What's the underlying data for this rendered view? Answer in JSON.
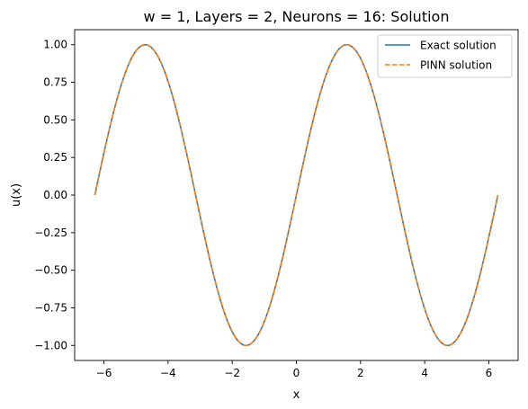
{
  "chart_data": {
    "type": "line",
    "title": "w = 1, Layers = 2, Neurons = 16: Solution",
    "xlabel": "x",
    "ylabel": "u(x)",
    "xlim": [
      -6.912,
      6.912
    ],
    "ylim": [
      -1.1,
      1.1
    ],
    "xticks": [
      -6,
      -4,
      -2,
      0,
      2,
      4,
      6
    ],
    "xtick_labels": [
      "−6",
      "−4",
      "−2",
      "0",
      "2",
      "4",
      "6"
    ],
    "yticks": [
      -1.0,
      -0.75,
      -0.5,
      -0.25,
      0.0,
      0.25,
      0.5,
      0.75,
      1.0
    ],
    "ytick_labels": [
      "−1.00",
      "−0.75",
      "−0.50",
      "−0.25",
      "0.00",
      "0.25",
      "0.50",
      "0.75",
      "1.00"
    ],
    "grid": false,
    "legend_position": "top-right",
    "function": "sin(x)",
    "x_domain": [
      -6.2832,
      6.2832
    ],
    "series": [
      {
        "name": "Exact solution",
        "color": "#1f77b4",
        "style": "solid",
        "x": [
          -6.2832,
          -5.4978,
          -4.7124,
          -3.927,
          -3.1416,
          -2.3562,
          -1.5708,
          -0.7854,
          0.0,
          0.7854,
          1.5708,
          2.3562,
          3.1416,
          3.927,
          4.7124,
          5.4978,
          6.2832
        ],
        "y": [
          0.0,
          0.7071,
          1.0,
          0.7071,
          0.0,
          -0.7071,
          -1.0,
          -0.7071,
          0.0,
          0.7071,
          1.0,
          0.7071,
          0.0,
          -0.7071,
          -1.0,
          -0.7071,
          0.0
        ]
      },
      {
        "name": "PINN solution",
        "color": "#ff7f0e",
        "style": "dashed",
        "x": [
          -6.2832,
          -5.4978,
          -4.7124,
          -3.927,
          -3.1416,
          -2.3562,
          -1.5708,
          -0.7854,
          0.0,
          0.7854,
          1.5708,
          2.3562,
          3.1416,
          3.927,
          4.7124,
          5.4978,
          6.2832
        ],
        "y": [
          0.0,
          0.7071,
          1.0,
          0.7071,
          0.0,
          -0.7071,
          -1.0,
          -0.7071,
          0.0,
          0.7071,
          1.0,
          0.7071,
          0.0,
          -0.7071,
          -1.0,
          -0.7071,
          0.0
        ]
      }
    ]
  }
}
